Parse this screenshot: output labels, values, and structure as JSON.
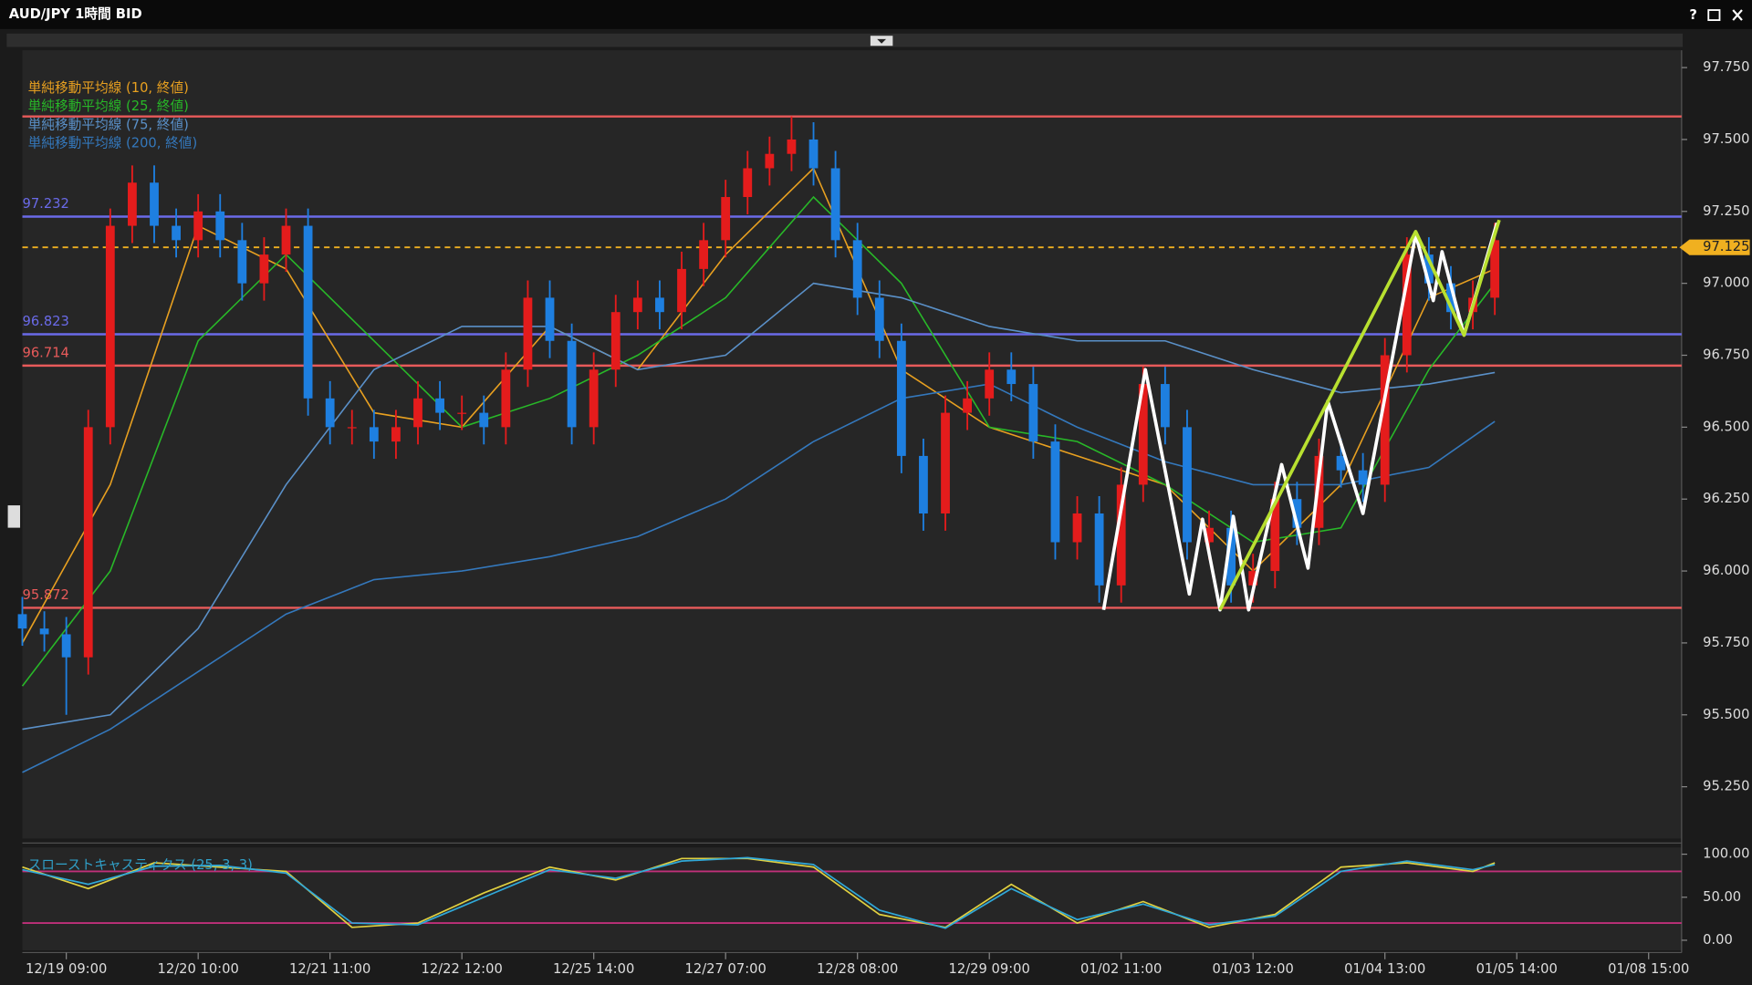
{
  "window": {
    "title": "AUD/JPY 1時間 BID",
    "help": "?"
  },
  "chart_data": [
    {
      "type": "candlestick",
      "x": [
        0,
        1,
        2,
        3,
        4,
        5,
        6,
        7,
        8,
        9,
        10,
        11,
        12,
        13,
        14,
        15,
        16,
        17,
        18,
        19,
        20,
        21,
        22,
        23,
        24,
        25,
        26,
        27,
        28,
        29,
        30,
        31,
        32,
        33,
        34,
        35,
        36,
        37,
        38,
        39,
        40,
        41,
        42,
        43,
        44,
        45,
        46,
        47,
        48,
        49,
        50,
        51,
        52,
        53,
        54,
        55,
        56,
        57,
        58,
        59,
        60,
        61,
        62,
        63,
        64,
        65,
        66,
        67
      ],
      "open": [
        95.85,
        95.8,
        95.78,
        95.7,
        96.5,
        97.2,
        97.35,
        97.2,
        97.15,
        97.25,
        97.15,
        97.0,
        97.1,
        97.2,
        96.6,
        96.5,
        96.5,
        96.45,
        96.5,
        96.6,
        96.55,
        96.55,
        96.5,
        96.7,
        96.95,
        96.8,
        96.5,
        96.7,
        96.9,
        96.95,
        96.9,
        97.05,
        97.15,
        97.3,
        97.4,
        97.45,
        97.5,
        97.4,
        97.15,
        96.95,
        96.8,
        96.4,
        96.2,
        96.55,
        96.6,
        96.7,
        96.65,
        96.45,
        96.1,
        96.2,
        95.95,
        96.3,
        96.65,
        96.5,
        96.1,
        96.15,
        95.95,
        96.0,
        96.25,
        96.15,
        96.4,
        96.35,
        96.3,
        96.75,
        97.1,
        97.0,
        96.9,
        96.95
      ],
      "high": [
        95.91,
        95.86,
        95.84,
        96.56,
        97.26,
        97.41,
        97.41,
        97.26,
        97.31,
        97.31,
        97.21,
        97.16,
        97.26,
        97.26,
        96.66,
        96.56,
        96.56,
        96.56,
        96.66,
        96.66,
        96.61,
        96.61,
        96.76,
        97.01,
        97.01,
        96.86,
        96.76,
        96.96,
        97.01,
        97.01,
        97.11,
        97.21,
        97.36,
        97.46,
        97.51,
        97.58,
        97.56,
        97.46,
        97.21,
        97.01,
        96.86,
        96.46,
        96.61,
        96.66,
        96.76,
        96.76,
        96.71,
        96.51,
        96.26,
        96.26,
        96.36,
        96.71,
        96.71,
        96.56,
        96.21,
        96.21,
        96.06,
        96.31,
        96.31,
        96.46,
        96.46,
        96.41,
        96.81,
        97.16,
        97.16,
        97.06,
        97.01,
        97.21
      ],
      "low": [
        95.74,
        95.72,
        95.5,
        95.64,
        96.44,
        97.14,
        97.14,
        97.09,
        97.09,
        97.09,
        96.94,
        96.94,
        97.04,
        96.54,
        96.44,
        96.44,
        96.39,
        96.39,
        96.44,
        96.49,
        96.49,
        96.44,
        96.44,
        96.64,
        96.74,
        96.44,
        96.44,
        96.64,
        96.84,
        96.84,
        96.84,
        96.99,
        97.09,
        97.24,
        97.34,
        97.39,
        97.34,
        97.09,
        96.89,
        96.74,
        96.34,
        96.14,
        96.14,
        96.49,
        96.54,
        96.59,
        96.39,
        96.04,
        96.04,
        95.89,
        95.89,
        96.24,
        96.44,
        96.04,
        96.04,
        95.89,
        95.89,
        95.94,
        96.09,
        96.09,
        96.29,
        96.24,
        96.24,
        96.69,
        96.94,
        96.84,
        96.84,
        96.89
      ],
      "close": [
        95.8,
        95.78,
        95.7,
        96.5,
        97.2,
        97.35,
        97.2,
        97.15,
        97.25,
        97.15,
        97.0,
        97.1,
        97.2,
        96.6,
        96.5,
        96.5,
        96.45,
        96.5,
        96.6,
        96.55,
        96.55,
        96.5,
        96.7,
        96.95,
        96.8,
        96.5,
        96.7,
        96.9,
        96.95,
        96.9,
        97.05,
        97.15,
        97.3,
        97.4,
        97.45,
        97.5,
        97.4,
        97.15,
        96.95,
        96.8,
        96.4,
        96.2,
        96.55,
        96.6,
        96.7,
        96.65,
        96.45,
        96.1,
        96.2,
        95.95,
        96.3,
        96.65,
        96.5,
        96.1,
        96.15,
        95.95,
        96.0,
        96.25,
        96.15,
        96.4,
        96.35,
        96.3,
        96.75,
        97.1,
        97.0,
        96.9,
        96.95,
        97.15
      ],
      "up_color": "#e41c1c",
      "down_color": "#1e7fe0",
      "series": [
        {
          "name": "単純移動平均線 (10, 終値)",
          "color": "#e8a020",
          "x": [
            0,
            4,
            8,
            12,
            16,
            20,
            24,
            28,
            32,
            36,
            40,
            44,
            48,
            52,
            56,
            60,
            64,
            67
          ],
          "values": [
            95.75,
            96.3,
            97.2,
            97.05,
            96.55,
            96.5,
            96.85,
            96.7,
            97.1,
            97.4,
            96.7,
            96.5,
            96.4,
            96.3,
            96.0,
            96.3,
            96.95,
            97.05
          ]
        },
        {
          "name": "単純移動平均線 (25, 終値)",
          "color": "#28b828",
          "x": [
            0,
            4,
            8,
            12,
            16,
            20,
            24,
            28,
            32,
            36,
            40,
            44,
            48,
            52,
            56,
            60,
            64,
            67
          ],
          "values": [
            95.6,
            96.0,
            96.8,
            97.1,
            96.8,
            96.5,
            96.6,
            96.75,
            96.95,
            97.3,
            97.0,
            96.5,
            96.45,
            96.3,
            96.1,
            96.15,
            96.7,
            97.0
          ]
        },
        {
          "name": "単純移動平均線 (75, 終値)",
          "color": "#5a90c8",
          "x": [
            0,
            4,
            8,
            12,
            16,
            20,
            24,
            28,
            32,
            36,
            40,
            44,
            48,
            52,
            56,
            60,
            64,
            67
          ],
          "values": [
            95.45,
            95.5,
            95.8,
            96.3,
            96.7,
            96.85,
            96.85,
            96.7,
            96.75,
            97.0,
            96.95,
            96.85,
            96.8,
            96.8,
            96.7,
            96.62,
            96.65,
            96.69
          ]
        },
        {
          "name": "単純移動平均線 (200, 終値)",
          "color": "#3478bc",
          "x": [
            0,
            4,
            8,
            12,
            16,
            20,
            24,
            28,
            32,
            36,
            40,
            44,
            48,
            52,
            56,
            60,
            64,
            67
          ],
          "values": [
            95.3,
            95.45,
            95.65,
            95.85,
            95.97,
            96.0,
            96.05,
            96.12,
            96.25,
            96.45,
            96.6,
            96.65,
            96.5,
            96.38,
            96.3,
            96.3,
            96.36,
            96.52
          ]
        }
      ],
      "hlines": [
        {
          "value": 97.58,
          "color": "#e85a5a"
        },
        {
          "value": 97.232,
          "color": "#6a6ae8",
          "show_label": true
        },
        {
          "value": 96.823,
          "color": "#6a6ae8",
          "show_label": true
        },
        {
          "value": 96.714,
          "color": "#e85a5a",
          "show_label": true
        },
        {
          "value": 95.872,
          "color": "#e85a5a",
          "show_label": true
        }
      ],
      "current_price": {
        "value": 97.125,
        "label": "97.125",
        "color": "#f0b020"
      },
      "drawings": [
        {
          "color": "#ffffff",
          "x": [
            49.2,
            51.1,
            53.1,
            53.7,
            54.5,
            55.1,
            55.8,
            57.3,
            58.5,
            59.4,
            61.0,
            63.4,
            64.2,
            64.6,
            65.6,
            67.1
          ],
          "y": [
            95.865,
            96.7,
            95.92,
            96.18,
            95.865,
            96.19,
            95.865,
            96.37,
            96.01,
            96.59,
            96.2,
            97.17,
            96.94,
            97.11,
            96.82,
            97.21
          ]
        },
        {
          "color": "#b8e030",
          "x": [
            54.5,
            63.4,
            65.6,
            67.2
          ],
          "y": [
            95.865,
            97.18,
            96.82,
            97.22
          ]
        }
      ],
      "xlim": [
        0,
        75.5
      ],
      "ylim": [
        95.07,
        97.81
      ],
      "yticks": [
        {
          "value": 95.25,
          "label": "95.250"
        },
        {
          "value": 95.5,
          "label": "95.500"
        },
        {
          "value": 95.75,
          "label": "95.750"
        },
        {
          "value": 96.0,
          "label": "96.000"
        },
        {
          "value": 96.25,
          "label": "96.250"
        },
        {
          "value": 96.5,
          "label": "96.500"
        },
        {
          "value": 96.75,
          "label": "96.750"
        },
        {
          "value": 97.0,
          "label": "97.000"
        },
        {
          "value": 97.25,
          "label": "97.250"
        },
        {
          "value": 97.5,
          "label": "97.500"
        },
        {
          "value": 97.75,
          "label": "97.750"
        }
      ],
      "xticks": [
        {
          "value": 2,
          "label": "12/19 09:00"
        },
        {
          "value": 8,
          "label": "12/20 10:00"
        },
        {
          "value": 14,
          "label": "12/21 11:00"
        },
        {
          "value": 20,
          "label": "12/22 12:00"
        },
        {
          "value": 26,
          "label": "12/25 14:00"
        },
        {
          "value": 32,
          "label": "12/27 07:00"
        },
        {
          "value": 38,
          "label": "12/28 08:00"
        },
        {
          "value": 44,
          "label": "12/29 09:00"
        },
        {
          "value": 50,
          "label": "01/02 11:00"
        },
        {
          "value": 56,
          "label": "01/03 12:00"
        },
        {
          "value": 62,
          "label": "01/04 13:00"
        },
        {
          "value": 68,
          "label": "01/05 14:00"
        },
        {
          "value": 74,
          "label": "01/08 15:00"
        }
      ]
    },
    {
      "type": "line",
      "title": "スローストキャスティクス (25, 3, 3)",
      "x": [
        0,
        3,
        6,
        9,
        12,
        15,
        18,
        21,
        24,
        27,
        30,
        33,
        36,
        39,
        42,
        45,
        48,
        51,
        54,
        57,
        60,
        63,
        66,
        67
      ],
      "series": [
        {
          "color": "#e0d040",
          "values": [
            85,
            60,
            90,
            85,
            80,
            15,
            20,
            55,
            85,
            70,
            95,
            95,
            85,
            30,
            15,
            65,
            20,
            45,
            15,
            30,
            85,
            90,
            80,
            90
          ]
        },
        {
          "color": "#30a8d8",
          "values": [
            82,
            65,
            86,
            87,
            78,
            20,
            18,
            50,
            82,
            72,
            92,
            96,
            88,
            35,
            14,
            60,
            24,
            42,
            18,
            28,
            80,
            92,
            82,
            88
          ]
        }
      ],
      "levels": [
        80,
        20
      ],
      "level_color": "#c0307a",
      "ylim": [
        -11.7,
        107.8
      ],
      "yticks": [
        {
          "value": 0,
          "label": "0.00"
        },
        {
          "value": 50,
          "label": "50.00"
        },
        {
          "value": 100,
          "label": "100.00"
        }
      ]
    }
  ]
}
